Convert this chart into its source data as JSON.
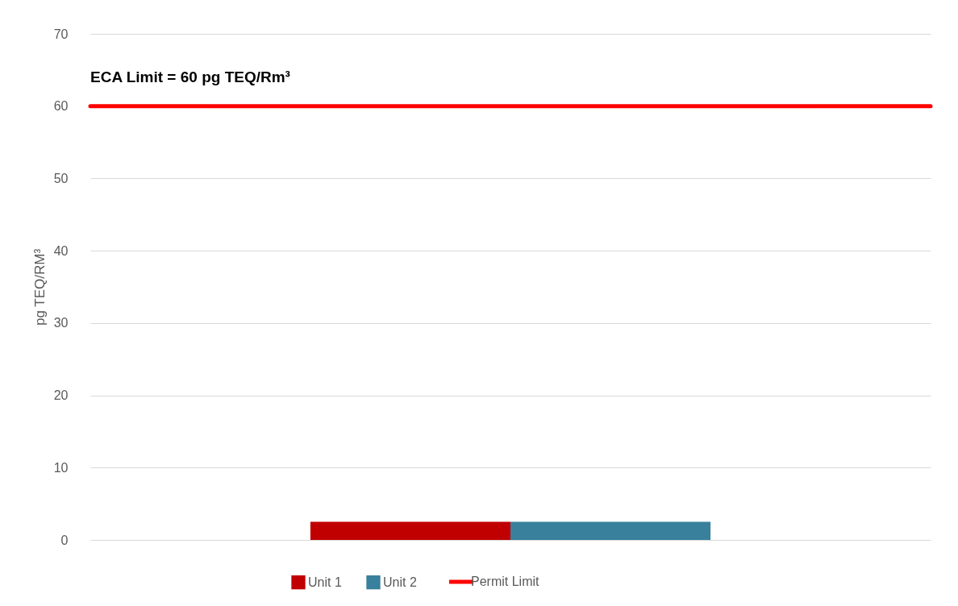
{
  "chart_data": {
    "type": "bar",
    "ylabel": "pg TEQ/RM³",
    "categories": [
      null
    ],
    "series": [
      {
        "name": "Unit 1",
        "color": "#c00000",
        "values": [
          2.5
        ]
      },
      {
        "name": "Unit 2",
        "color": "#38809c",
        "values": [
          2.5
        ]
      }
    ],
    "ylim": [
      0,
      70
    ],
    "yticks": [
      0,
      10,
      20,
      30,
      40,
      50,
      60,
      70
    ],
    "grid": "y",
    "legend": "bottom",
    "tick_labels": "y",
    "ref_lines": [
      {
        "axis": "y",
        "value": 60,
        "label": "Permit Limit",
        "color": "#ff0000"
      }
    ],
    "annotations": [
      "ECA Limit = 60 pg TEQ/Rm³"
    ]
  }
}
